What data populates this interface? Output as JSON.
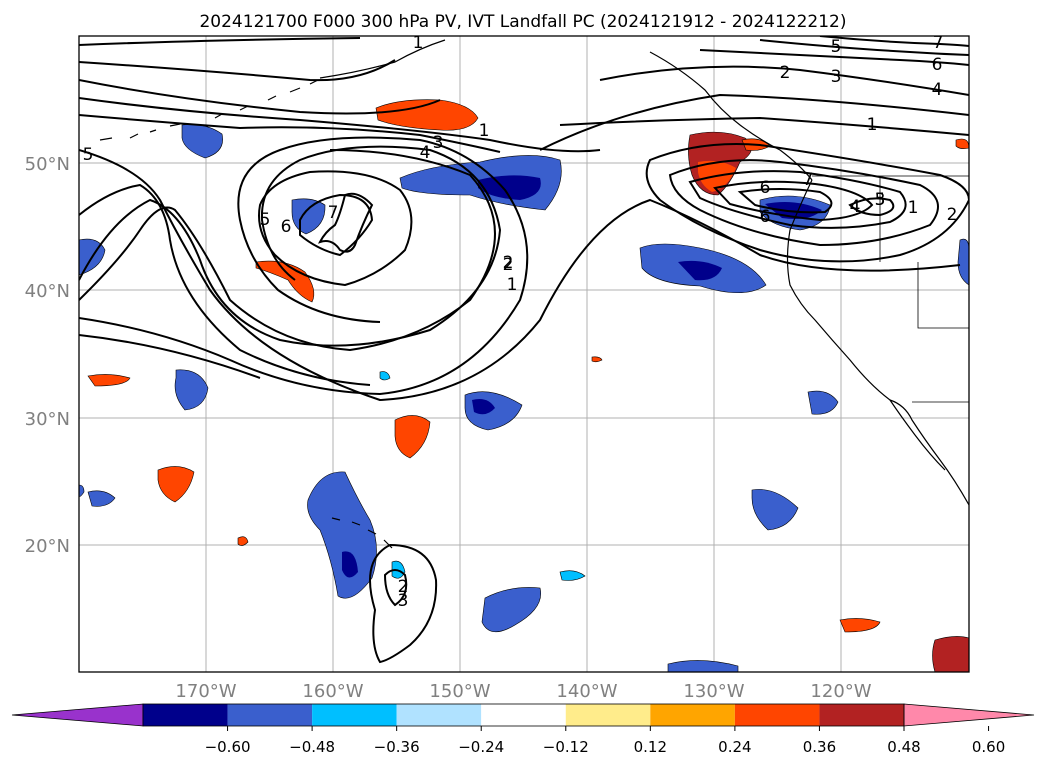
{
  "title": "2024121700 F000 300 hPa PV, IVT Landfall PC (2024121912 - 2024122212)",
  "map": {
    "lon_range": [
      -180,
      -110
    ],
    "lat_range": [
      10,
      60
    ],
    "lat_ticks": [
      {
        "value": 50,
        "label": "50°N"
      },
      {
        "value": 40,
        "label": "40°N"
      },
      {
        "value": 30,
        "label": "30°N"
      },
      {
        "value": 20,
        "label": "20°N"
      }
    ],
    "lon_ticks": [
      {
        "value": -170,
        "label": "170°W"
      },
      {
        "value": -160,
        "label": "160°W"
      },
      {
        "value": -150,
        "label": "150°W"
      },
      {
        "value": -140,
        "label": "140°W"
      },
      {
        "value": -130,
        "label": "130°W"
      },
      {
        "value": -120,
        "label": "120°W"
      }
    ],
    "contour_labels": [
      "1",
      "2",
      "3",
      "4",
      "5",
      "6",
      "7",
      "1",
      "2",
      "3",
      "4",
      "5",
      "6",
      "7",
      "5",
      "6",
      "7",
      "1",
      "2",
      "1",
      "2",
      "3",
      "4",
      "5",
      "6",
      "1",
      "2",
      "3"
    ]
  },
  "colorbar": {
    "colors": [
      "#9932cc",
      "#00008b",
      "#3a5fcd",
      "#00bfff",
      "#b0e2ff",
      "#ffffff",
      "#ffec8b",
      "#ffa500",
      "#ff4500",
      "#b22222",
      "#ff88aa"
    ],
    "ticks": [
      "−0.60",
      "−0.48",
      "−0.36",
      "−0.24",
      "−0.12",
      "0.12",
      "0.24",
      "0.36",
      "0.48",
      "0.60"
    ]
  }
}
